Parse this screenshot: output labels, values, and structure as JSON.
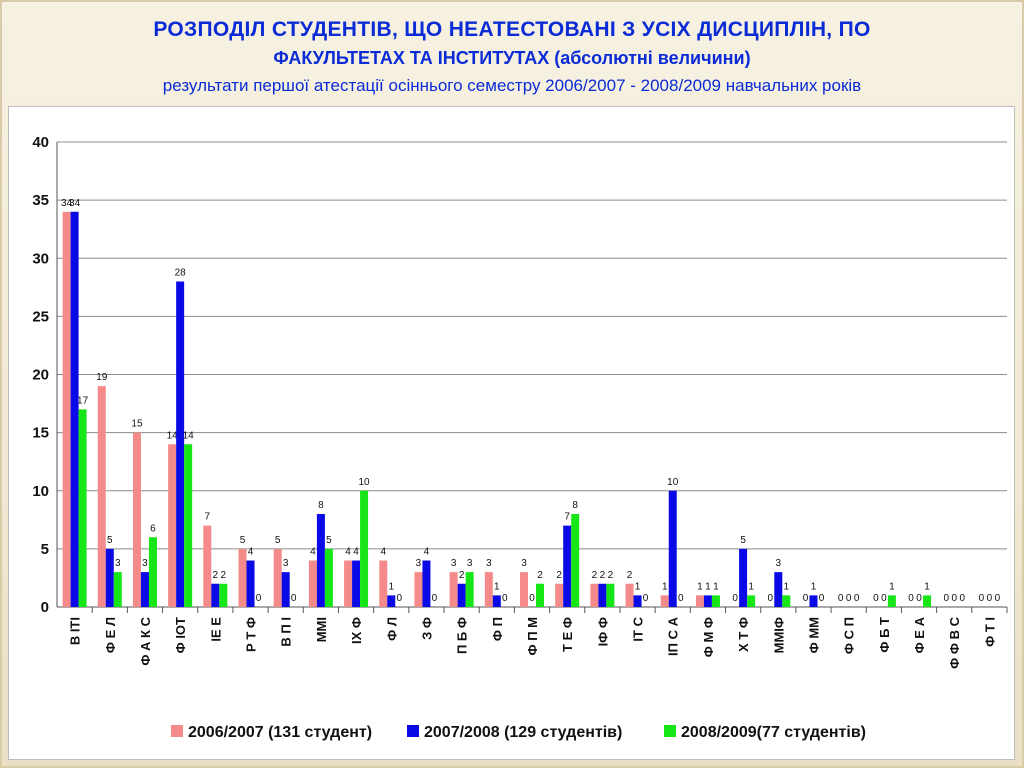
{
  "header": {
    "line1": "РОЗПОДІЛ  СТУДЕНТІВ,  ЩО  НЕАТЕСТОВАНІ  З УСІХ  ДИСЦИПЛІН, ПО",
    "line2": "ФАКУЛЬТЕТАХ ТА ІНСТИТУТАХ    (абсолютні  величини)",
    "line3": "результати першої атестації осіннього семестру 2006/2007 - 2008/2009 навчальних років"
  },
  "chart_data": {
    "type": "bar",
    "ylim": [
      0,
      40
    ],
    "yticks": [
      "0",
      "5",
      "10",
      "15",
      "20",
      "25",
      "30",
      "35",
      "40"
    ],
    "grid": true,
    "legend_position": "bottom",
    "categories": [
      "В ІТІ",
      "Ф Е Л",
      "Ф А К С",
      "Ф ІОТ",
      "ІЕ Е",
      "Р Т Ф",
      "В П І",
      "ММІ",
      "ІХ Ф",
      "Ф Л",
      "З Ф",
      "П Б Ф",
      "Ф П",
      "Ф П М",
      "Т Е Ф",
      "ІФ Ф",
      "ІТ С",
      "ІП С А",
      "Ф М Ф",
      "Х Т Ф",
      "ММІФ",
      "Ф ММ",
      "Ф С П",
      "Ф Б Т",
      "Ф Е А",
      "Ф Ф В С",
      "Ф Т І"
    ],
    "series": [
      {
        "name": "2006/2007 (131 студент)",
        "color": "#f58a8a",
        "values": [
          34,
          19,
          15,
          14,
          7,
          5,
          5,
          4,
          4,
          4,
          3,
          3,
          3,
          3,
          2,
          2,
          2,
          1,
          1,
          0,
          0,
          0,
          0,
          0,
          0,
          0,
          0
        ]
      },
      {
        "name": "2007/2008 (129 студентів)",
        "color": "#0a0ae6",
        "values": [
          34,
          5,
          3,
          28,
          2,
          4,
          3,
          8,
          4,
          1,
          4,
          2,
          1,
          0,
          7,
          2,
          1,
          10,
          1,
          5,
          3,
          1,
          0,
          0,
          0,
          0,
          0
        ]
      },
      {
        "name": "2008/2009(77 студентів)",
        "color": "#16e616",
        "values": [
          17,
          3,
          6,
          14,
          2,
          0,
          0,
          5,
          10,
          0,
          0,
          3,
          0,
          2,
          8,
          2,
          0,
          0,
          1,
          1,
          1,
          0,
          0,
          1,
          1,
          0,
          0
        ]
      }
    ]
  }
}
